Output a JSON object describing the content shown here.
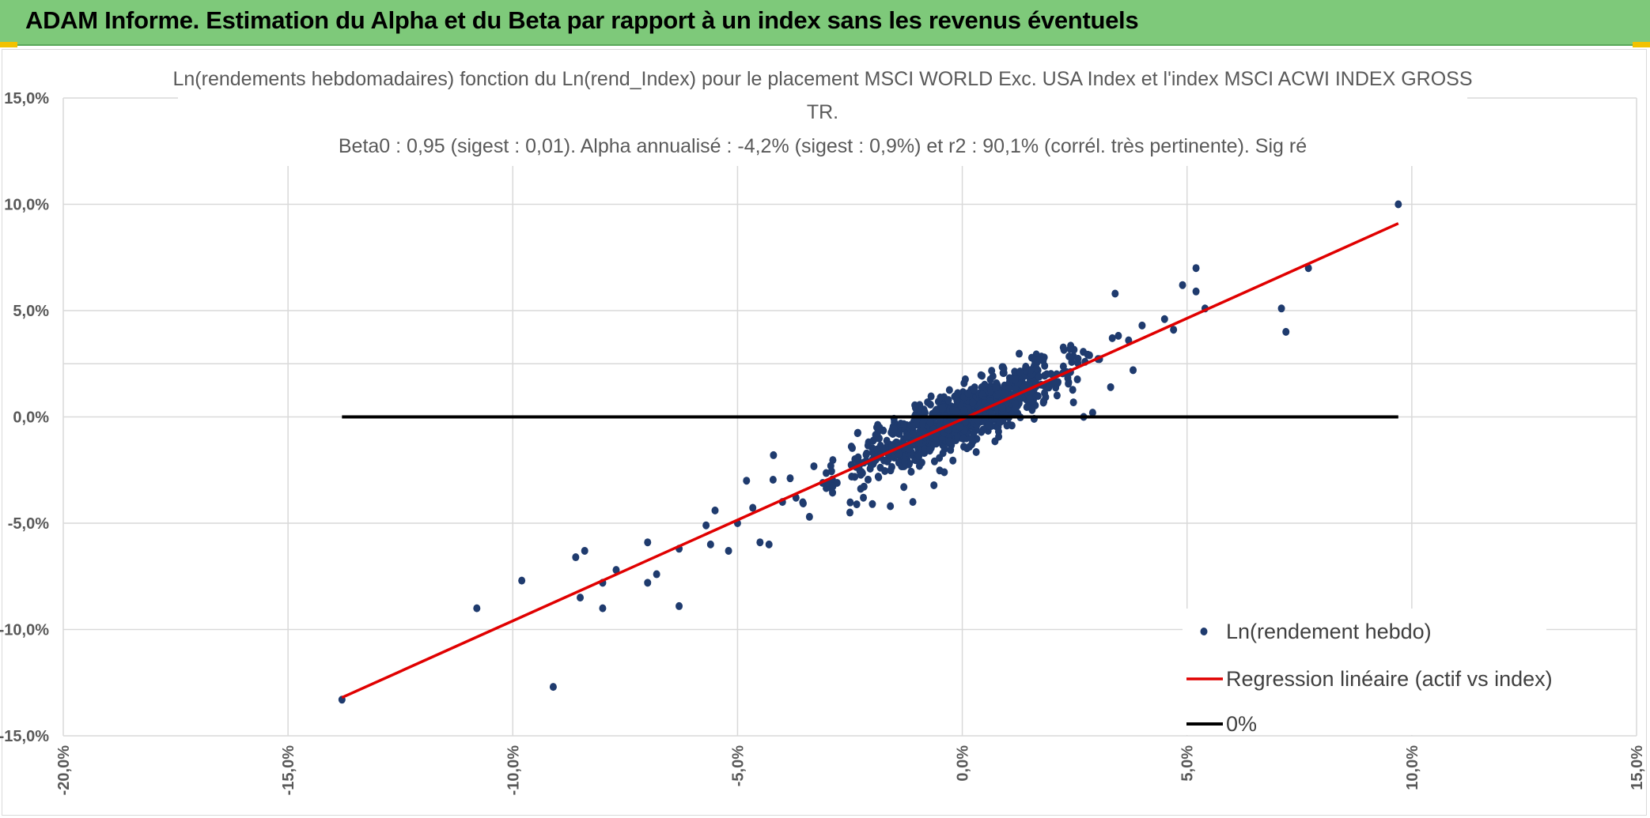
{
  "banner": {
    "title": "ADAM Informe. Estimation du Alpha et du Beta par rapport à un index sans les revenus éventuels"
  },
  "colors": {
    "banner_bg": "#7ec97a",
    "points": "#1f3b6e",
    "regression": "#e00000",
    "zero_line": "#000000",
    "grid": "#d9d9d9"
  },
  "chart_data": {
    "type": "scatter",
    "title_lines": [
      "Ln(rendements hebdomadaires) fonction du Ln(rend_Index) pour le placement MSCI WORLD Exc. USA Index et l'index MSCI ACWI INDEX GROSS",
      "TR.",
      "Beta0 : 0,95 (sigest : 0,01). Alpha annualisé : -4,2% (sigest : 0,9%) et r2 : 90,1% (corrél. très pertinente). Sig ré"
    ],
    "xlim": [
      -0.2,
      0.15
    ],
    "ylim": [
      -0.15,
      0.15
    ],
    "x_ticks": [
      "-20,0%",
      "-15,0%",
      "-10,0%",
      "-5,0%",
      "0,0%",
      "5,0%",
      "10,0%",
      "15,0%"
    ],
    "y_ticks": [
      "15,0%",
      "10,0%",
      "5,0%",
      "0,0%",
      "-5,0%",
      "-10,0%",
      "-15,0%"
    ],
    "grid": true,
    "legend_position": "bottom-right",
    "series": [
      {
        "name": "Ln(rendement hebdo)",
        "kind": "scatter",
        "points_listed": [
          [
            0.097,
            0.1
          ],
          [
            -0.138,
            -0.133
          ],
          [
            -0.091,
            -0.127
          ],
          [
            0.052,
            0.07
          ],
          [
            0.077,
            0.07
          ],
          [
            0.071,
            0.051
          ],
          [
            0.072,
            0.04
          ],
          [
            0.049,
            0.062
          ],
          [
            0.052,
            0.059
          ],
          [
            0.054,
            0.051
          ],
          [
            0.047,
            0.041
          ],
          [
            0.034,
            0.058
          ],
          [
            -0.108,
            -0.09
          ],
          [
            -0.098,
            -0.077
          ],
          [
            -0.085,
            -0.085
          ],
          [
            -0.08,
            -0.078
          ],
          [
            -0.08,
            -0.09
          ],
          [
            -0.086,
            -0.066
          ],
          [
            -0.084,
            -0.063
          ],
          [
            -0.077,
            -0.072
          ],
          [
            -0.07,
            -0.078
          ],
          [
            -0.068,
            -0.074
          ],
          [
            -0.07,
            -0.059
          ],
          [
            -0.063,
            -0.089
          ],
          [
            -0.063,
            -0.062
          ],
          [
            -0.056,
            -0.06
          ],
          [
            -0.055,
            -0.044
          ],
          [
            -0.057,
            -0.051
          ],
          [
            -0.052,
            -0.063
          ],
          [
            -0.05,
            -0.05
          ],
          [
            -0.048,
            -0.03
          ],
          [
            -0.045,
            -0.059
          ],
          [
            -0.043,
            -0.06
          ],
          [
            -0.042,
            -0.018
          ],
          [
            -0.04,
            -0.04
          ],
          [
            -0.037,
            -0.038
          ],
          [
            -0.034,
            -0.047
          ],
          [
            -0.03,
            -0.031
          ],
          [
            -0.025,
            -0.045
          ],
          [
            -0.022,
            -0.038
          ],
          [
            -0.02,
            -0.041
          ],
          [
            -0.016,
            -0.042
          ],
          [
            -0.013,
            -0.033
          ],
          [
            -0.011,
            -0.04
          ],
          [
            -0.004,
            -0.026
          ],
          [
            0.038,
            0.022
          ],
          [
            0.029,
            0.002
          ],
          [
            0.04,
            0.043
          ],
          [
            0.045,
            0.046
          ],
          [
            0.037,
            0.036
          ],
          [
            0.033,
            0.014
          ],
          [
            0.027,
            -0.0
          ]
        ],
        "cloud_center": [
          0.0,
          0.0
        ],
        "cloud_count": 1000
      },
      {
        "name": "Regression linéaire (actif vs index)",
        "kind": "line",
        "x": [
          -0.138,
          0.097
        ],
        "y": [
          -0.132,
          0.091
        ]
      },
      {
        "name": "0%",
        "kind": "line",
        "x": [
          -0.138,
          0.097
        ],
        "y": [
          0.0,
          0.0
        ]
      }
    ]
  }
}
